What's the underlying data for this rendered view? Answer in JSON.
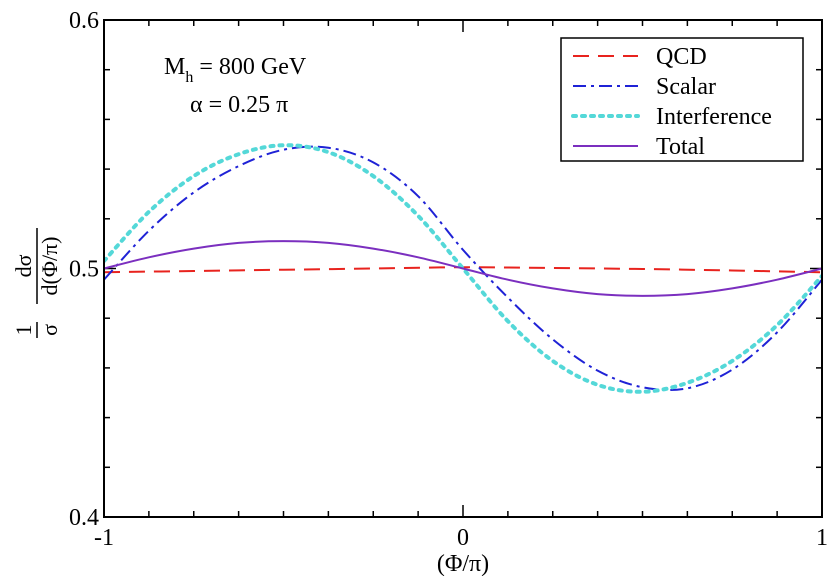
{
  "chart_data": {
    "type": "line",
    "title": "",
    "xlabel": "(Φ/π)",
    "ylabel": {
      "prefix_num": "1",
      "prefix_den": "σ",
      "frac_num": "dσ",
      "frac_den": "d(Φ/π)"
    },
    "xlim": [
      -1,
      1
    ],
    "ylim": [
      0.4,
      0.6
    ],
    "x_ticks": [
      "-1",
      "0",
      "1"
    ],
    "y_ticks": [
      "0.4",
      "0.5",
      "0.6"
    ],
    "grid": false,
    "legend_placement": "top-right",
    "annotations": {
      "mass_label": "M",
      "mass_subscript": "h",
      "mass_value": " = 800 GeV",
      "alpha_label": "α = 0.25 π"
    },
    "series": [
      {
        "name": "QCD",
        "color": "#e8231e",
        "dash": "dashed",
        "x": [
          -1.0,
          -0.75,
          -0.5,
          -0.25,
          0.0,
          0.25,
          0.5,
          0.75,
          1.0
        ],
        "y": [
          0.4985,
          0.499,
          0.4995,
          0.5,
          0.5005,
          0.5002,
          0.4998,
          0.4992,
          0.4985
        ]
      },
      {
        "name": "Scalar",
        "color": "#1f22d6",
        "dash": "dashdot",
        "x": [
          -1.0,
          -0.875,
          -0.75,
          -0.625,
          -0.5,
          -0.375,
          -0.25,
          -0.125,
          0.0,
          0.125,
          0.25,
          0.375,
          0.5,
          0.625,
          0.75,
          0.875,
          1.0
        ],
        "y": [
          0.4955,
          0.5152,
          0.5306,
          0.5412,
          0.5478,
          0.5486,
          0.5427,
          0.5291,
          0.5075,
          0.4883,
          0.4715,
          0.4589,
          0.4522,
          0.4518,
          0.4593,
          0.4743,
          0.4955
        ]
      },
      {
        "name": "Interference",
        "color": "#54d8d8",
        "dash": "dotted",
        "x": [
          -1.0,
          -0.875,
          -0.75,
          -0.625,
          -0.5,
          -0.375,
          -0.25,
          -0.125,
          0.0,
          0.125,
          0.25,
          0.375,
          0.5,
          0.625,
          0.75,
          0.875,
          1.0
        ],
        "y": [
          0.503,
          0.5228,
          0.5372,
          0.546,
          0.5496,
          0.5468,
          0.5372,
          0.5212,
          0.5,
          0.4788,
          0.4628,
          0.4532,
          0.4504,
          0.454,
          0.4628,
          0.4772,
          0.497
        ]
      },
      {
        "name": "Total",
        "color": "#7b2fbf",
        "dash": "solid",
        "x": [
          -1.0,
          -0.875,
          -0.75,
          -0.625,
          -0.5,
          -0.375,
          -0.25,
          -0.125,
          0.0,
          0.125,
          0.25,
          0.375,
          0.5,
          0.625,
          0.75,
          0.875,
          1.0
        ],
        "y": [
          0.5,
          0.5045,
          0.508,
          0.5103,
          0.511,
          0.5103,
          0.508,
          0.5045,
          0.5,
          0.4955,
          0.492,
          0.4897,
          0.489,
          0.4897,
          0.492,
          0.4955,
          0.5
        ]
      }
    ]
  }
}
